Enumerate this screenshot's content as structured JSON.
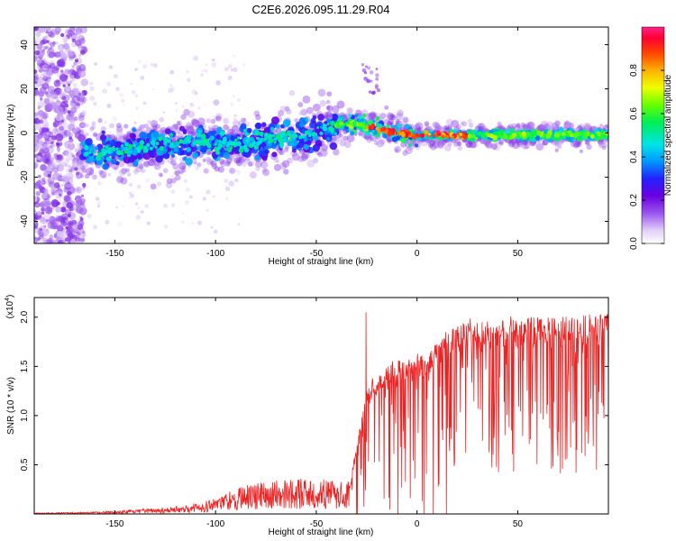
{
  "figure": {
    "title": "C2E6.2026.095.11.29.R04"
  },
  "chart_data": [
    {
      "type": "heatmap",
      "xlabel": "Height of straight line (km)",
      "ylabel": "Frequency (Hz)",
      "xlim": [
        -190,
        95
      ],
      "ylim": [
        -50,
        48
      ],
      "x_ticks": [
        -150,
        -100,
        -50,
        0,
        50
      ],
      "y_ticks": [
        -40,
        -20,
        0,
        20,
        40
      ],
      "colorbar": {
        "label": "Normalized spectral amplitude",
        "range": [
          0,
          1
        ],
        "ticks": [
          0.0,
          0.2,
          0.4,
          0.6,
          0.8
        ]
      },
      "ridge": {
        "x": [
          -166,
          -150,
          -130,
          -110,
          -90,
          -70,
          -50,
          -38,
          -30,
          -20,
          -10,
          0,
          20,
          50,
          95
        ],
        "freq": [
          -9,
          -8,
          -6,
          -4,
          -5,
          -3,
          0,
          4,
          4,
          2,
          0,
          -1,
          -1,
          -1,
          -1
        ]
      }
    },
    {
      "type": "line",
      "xlabel": "Height of straight line (km)",
      "ylabel": "SNR (10 * v/v)",
      "y_multiplier": "(x10",
      "y_multiplier_exp": "4",
      "xlim": [
        -190,
        95
      ],
      "ylim": [
        0,
        2.2
      ],
      "x_ticks": [
        -150,
        -100,
        -50,
        0,
        50
      ],
      "y_ticks": [
        0.5,
        1.0,
        1.5,
        2.0
      ],
      "y_tick_labels": [
        "0.5",
        "1.0",
        "1.5",
        "2.0"
      ],
      "color": "#ee2222",
      "envelope": {
        "x": [
          -190,
          -160,
          -140,
          -120,
          -105,
          -95,
          -85,
          -70,
          -55,
          -40,
          -33,
          -30,
          -25,
          -15,
          -5,
          5,
          10,
          15,
          20,
          30,
          40,
          60,
          80,
          95
        ],
        "y": [
          0.01,
          0.02,
          0.04,
          0.07,
          0.12,
          0.2,
          0.27,
          0.32,
          0.33,
          0.31,
          0.32,
          0.7,
          1.3,
          1.5,
          1.6,
          1.65,
          1.75,
          1.85,
          1.95,
          1.98,
          2.0,
          2.0,
          2.0,
          2.05
        ]
      }
    }
  ]
}
